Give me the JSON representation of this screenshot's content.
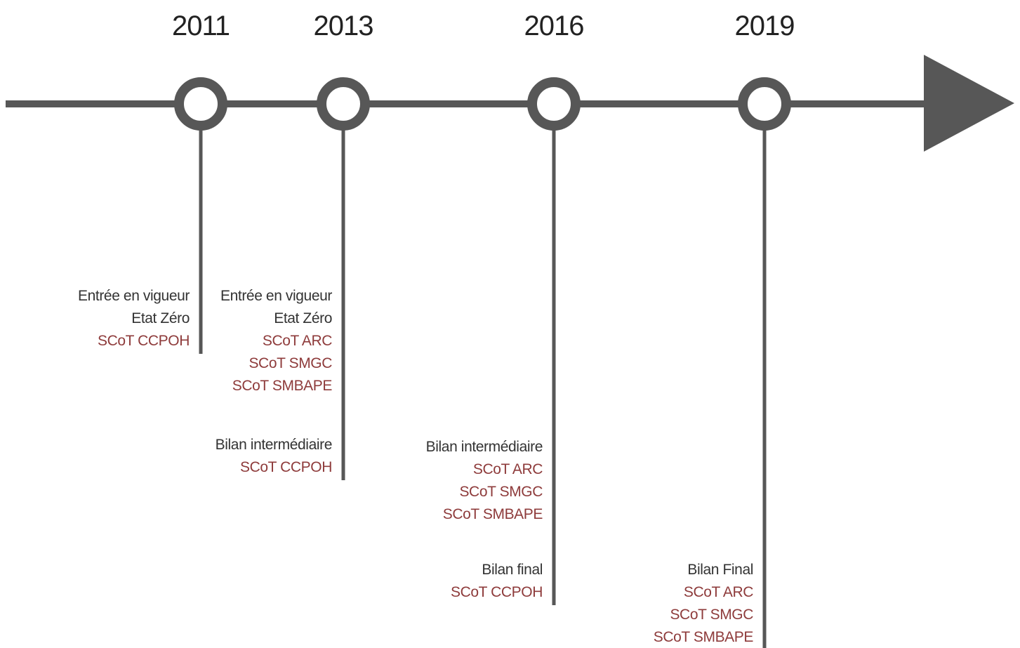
{
  "milestones": [
    {
      "year": "2011",
      "groups": [
        {
          "title": [
            "Entrée en vigueur",
            "Etat Zéro"
          ],
          "items": [
            "SCoT CCPOH"
          ]
        }
      ]
    },
    {
      "year": "2013",
      "groups": [
        {
          "title": [
            "Entrée en vigueur",
            "Etat Zéro"
          ],
          "items": [
            "SCoT ARC",
            "SCoT SMGC",
            "SCoT SMBAPE"
          ]
        },
        {
          "title": [
            "Bilan intermédiaire"
          ],
          "items": [
            "SCoT CCPOH"
          ]
        }
      ]
    },
    {
      "year": "2016",
      "groups": [
        {
          "title": [
            "Bilan intermédiaire"
          ],
          "items": [
            "SCoT ARC",
            "SCoT SMGC",
            "SCoT SMBAPE"
          ]
        },
        {
          "title": [
            "Bilan final"
          ],
          "items": [
            "SCoT CCPOH"
          ]
        }
      ]
    },
    {
      "year": "2019",
      "groups": [
        {
          "title": [
            "Bilan Final"
          ],
          "items": [
            "SCoT ARC",
            "SCoT SMGC",
            "SCoT SMBAPE"
          ]
        }
      ]
    }
  ]
}
